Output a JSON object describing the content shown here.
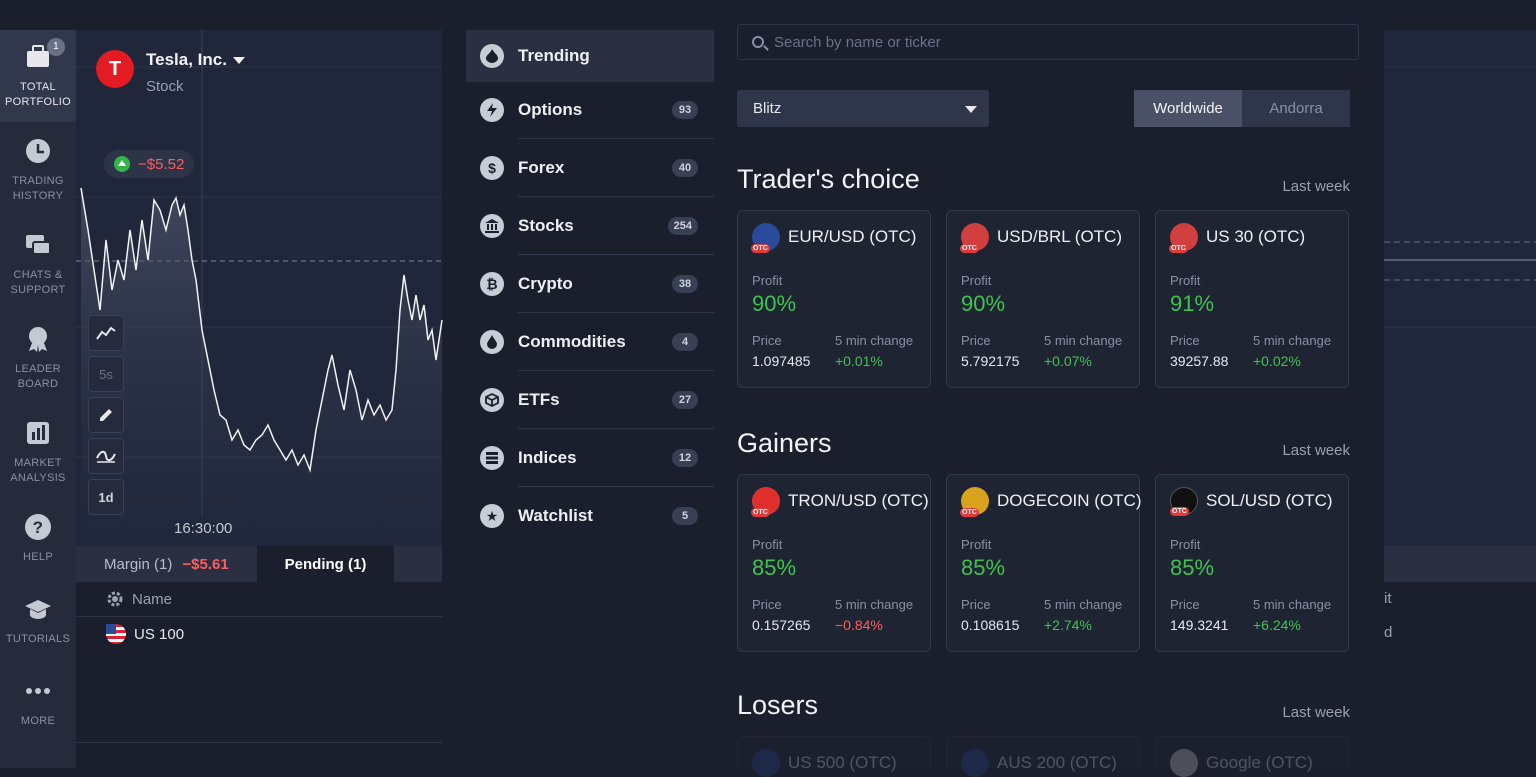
{
  "nav": {
    "items": [
      {
        "label": "TOTAL\nPORTFOLIO",
        "icon": "briefcase-icon",
        "badge": "1",
        "active": true
      },
      {
        "label": "TRADING\nHISTORY",
        "icon": "clock-icon"
      },
      {
        "label": "CHATS &\nSUPPORT",
        "icon": "chat-icon"
      },
      {
        "label": "LEADER\nBOARD",
        "icon": "medal-icon"
      },
      {
        "label": "MARKET\nANALYSIS",
        "icon": "bar-chart-icon"
      },
      {
        "label": "HELP",
        "icon": "question-icon"
      },
      {
        "label": "TUTORIALS",
        "icon": "graduation-cap-icon"
      },
      {
        "label": "MORE",
        "icon": "dots-icon"
      }
    ]
  },
  "asset": {
    "logo": "T",
    "name": "Tesla, Inc.",
    "type": "Stock",
    "pnl": "−$5.52",
    "time_label": "16:30:00",
    "timeframe_label": "5s",
    "period_label": "1d"
  },
  "tabs": {
    "margin_label": "Margin (1)",
    "margin_value": "−$5.61",
    "pending_label": "Pending (1)"
  },
  "positions": {
    "column_name": "Name",
    "rows": [
      {
        "name": "US 100"
      }
    ]
  },
  "categories": [
    {
      "label": "Trending",
      "icon": "flame-icon",
      "active": true
    },
    {
      "label": "Options",
      "icon": "bolt-icon",
      "count": "93"
    },
    {
      "label": "Forex",
      "icon": "dollar-icon",
      "count": "40"
    },
    {
      "label": "Stocks",
      "icon": "bank-icon",
      "count": "254"
    },
    {
      "label": "Crypto",
      "icon": "bitcoin-icon",
      "count": "38"
    },
    {
      "label": "Commodities",
      "icon": "drop-icon",
      "count": "4"
    },
    {
      "label": "ETFs",
      "icon": "cube-icon",
      "count": "27"
    },
    {
      "label": "Indices",
      "icon": "stack-icon",
      "count": "12"
    },
    {
      "label": "Watchlist",
      "icon": "star-icon",
      "count": "5"
    }
  ],
  "search": {
    "placeholder": "Search by name or ticker"
  },
  "filter": {
    "selected": "Blitz"
  },
  "region": {
    "options": [
      "Worldwide",
      "Andorra"
    ],
    "selected": "Worldwide"
  },
  "labels": {
    "profit": "Profit",
    "price": "Price",
    "change": "5 min change",
    "otc": "OTC"
  },
  "sections": [
    {
      "title": "Trader's choice",
      "period": "Last week",
      "cards": [
        {
          "name": "EUR/USD (OTC)",
          "profit": "90%",
          "price": "1.097485",
          "change": "+0.01%",
          "dir": "pos",
          "color": "#2a4a9b"
        },
        {
          "name": "USD/BRL (OTC)",
          "profit": "90%",
          "price": "5.792175",
          "change": "+0.07%",
          "dir": "pos",
          "color": "#d23f3f"
        },
        {
          "name": "US 30 (OTC)",
          "profit": "91%",
          "price": "39257.88",
          "change": "+0.02%",
          "dir": "pos",
          "color": "#d23f3f"
        }
      ]
    },
    {
      "title": "Gainers",
      "period": "Last week",
      "cards": [
        {
          "name": "TRON/USD (OTC)",
          "profit": "85%",
          "price": "0.157265",
          "change": "−0.84%",
          "dir": "neg",
          "color": "#e0302e"
        },
        {
          "name": "DOGECOIN (OTC)",
          "profit": "85%",
          "price": "0.108615",
          "change": "+2.74%",
          "dir": "pos",
          "color": "#d9a21c"
        },
        {
          "name": "SOL/USD (OTC)",
          "profit": "85%",
          "price": "149.3241",
          "change": "+6.24%",
          "dir": "pos",
          "color": "#111111"
        }
      ]
    },
    {
      "title": "Losers",
      "period": "Last week",
      "cards": [
        {
          "name": "US 500 (OTC)",
          "color": "#2a4a9b"
        },
        {
          "name": "AUS 200 (OTC)",
          "color": "#2a4a9b"
        },
        {
          "name": "Google (OTC)",
          "color": "#dddddd"
        }
      ]
    }
  ],
  "right_fragments": [
    "it",
    "d"
  ]
}
